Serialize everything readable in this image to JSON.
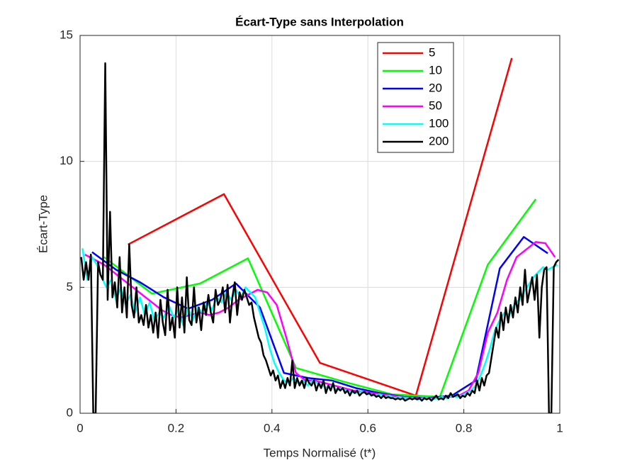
{
  "chart_data": {
    "type": "line",
    "title": "Écart-Type sans Interpolation",
    "xlabel": "Temps Normalisé (t*)",
    "ylabel": "Écart-Type",
    "xlim": [
      0,
      1
    ],
    "ylim": [
      0,
      15
    ],
    "xticks": [
      0,
      0.2,
      0.4,
      0.6,
      0.8,
      1
    ],
    "yticks": [
      0,
      5,
      10,
      15
    ],
    "grid": true,
    "legend": "upper right",
    "series": [
      {
        "name": "5",
        "color": "#ff0000",
        "x": [
          0.1,
          0.3,
          0.5,
          0.7,
          0.9
        ],
        "values": [
          6.7,
          8.7,
          2.0,
          0.7,
          14.1
        ]
      },
      {
        "name": "10",
        "color": "#00ff00",
        "x": [
          0.05,
          0.15,
          0.25,
          0.35,
          0.45,
          0.55,
          0.65,
          0.75,
          0.85,
          0.95
        ],
        "values": [
          6.2,
          4.75,
          5.15,
          6.15,
          1.8,
          1.25,
          0.75,
          0.65,
          5.9,
          8.5
        ]
      },
      {
        "name": "20",
        "color": "#0000ff",
        "x": [
          0.025,
          0.075,
          0.125,
          0.175,
          0.225,
          0.275,
          0.325,
          0.375,
          0.425,
          0.475,
          0.525,
          0.575,
          0.625,
          0.675,
          0.725,
          0.775,
          0.825,
          0.875,
          0.925,
          0.975
        ],
        "values": [
          6.4,
          5.7,
          5.2,
          4.6,
          4.15,
          4.5,
          5.15,
          4.2,
          1.6,
          1.4,
          1.3,
          1.0,
          0.8,
          0.65,
          0.6,
          0.7,
          1.3,
          5.75,
          7.0,
          6.35
        ]
      },
      {
        "name": "50",
        "color": "#ff00ff",
        "x": [
          0.01,
          0.03,
          0.05,
          0.07,
          0.09,
          0.11,
          0.13,
          0.15,
          0.17,
          0.19,
          0.21,
          0.23,
          0.25,
          0.27,
          0.29,
          0.31,
          0.33,
          0.35,
          0.37,
          0.39,
          0.41,
          0.43,
          0.45,
          0.47,
          0.49,
          0.51,
          0.53,
          0.55,
          0.57,
          0.59,
          0.61,
          0.63,
          0.65,
          0.67,
          0.69,
          0.71,
          0.73,
          0.75,
          0.77,
          0.79,
          0.81,
          0.83,
          0.85,
          0.87,
          0.89,
          0.91,
          0.93,
          0.95,
          0.97,
          0.99
        ],
        "values": [
          6.3,
          6.1,
          5.9,
          5.6,
          5.3,
          5.0,
          4.7,
          4.4,
          4.1,
          3.9,
          3.8,
          3.9,
          4.0,
          3.9,
          4.0,
          4.2,
          4.5,
          4.7,
          4.9,
          4.8,
          4.3,
          3.0,
          1.6,
          1.3,
          1.3,
          1.2,
          1.1,
          1.0,
          0.9,
          0.85,
          0.8,
          0.75,
          0.7,
          0.65,
          0.6,
          0.6,
          0.6,
          0.6,
          0.65,
          0.7,
          0.9,
          1.6,
          3.2,
          4.0,
          5.3,
          6.2,
          6.5,
          6.8,
          6.75,
          6.2
        ]
      },
      {
        "name": "100",
        "color": "#00ffff",
        "x": [
          0.005,
          0.015,
          0.025,
          0.035,
          0.045,
          0.055,
          0.065,
          0.075,
          0.085,
          0.095,
          0.105,
          0.115,
          0.125,
          0.135,
          0.145,
          0.155,
          0.165,
          0.175,
          0.185,
          0.195,
          0.205,
          0.215,
          0.225,
          0.235,
          0.245,
          0.255,
          0.265,
          0.275,
          0.285,
          0.295,
          0.305,
          0.315,
          0.325,
          0.335,
          0.345,
          0.355,
          0.365,
          0.375,
          0.385,
          0.395,
          0.405,
          0.415,
          0.425,
          0.435,
          0.445,
          0.455,
          0.465,
          0.475,
          0.485,
          0.495,
          0.505,
          0.515,
          0.525,
          0.535,
          0.545,
          0.555,
          0.565,
          0.575,
          0.585,
          0.595,
          0.605,
          0.615,
          0.625,
          0.635,
          0.645,
          0.655,
          0.665,
          0.675,
          0.685,
          0.695,
          0.705,
          0.715,
          0.725,
          0.735,
          0.745,
          0.755,
          0.765,
          0.775,
          0.785,
          0.795,
          0.805,
          0.815,
          0.825,
          0.835,
          0.845,
          0.855,
          0.865,
          0.875,
          0.885,
          0.895,
          0.905,
          0.915,
          0.925,
          0.935,
          0.945,
          0.955,
          0.965,
          0.975,
          0.985,
          0.995
        ],
        "values": [
          6.55,
          5.3,
          6.2,
          5.9,
          5.4,
          5.0,
          5.3,
          4.5,
          5.0,
          4.3,
          4.7,
          4.0,
          4.6,
          3.9,
          4.4,
          3.7,
          4.0,
          3.8,
          4.3,
          3.8,
          4.1,
          3.5,
          4.2,
          3.7,
          4.2,
          4.0,
          4.4,
          4.1,
          4.6,
          4.4,
          4.8,
          4.5,
          4.9,
          4.6,
          5.0,
          4.8,
          4.6,
          4.0,
          3.4,
          2.6,
          2.0,
          1.6,
          1.3,
          1.2,
          1.4,
          1.2,
          1.3,
          1.1,
          1.3,
          1.2,
          1.1,
          1.0,
          1.1,
          0.9,
          1.0,
          0.9,
          0.85,
          0.8,
          0.85,
          0.8,
          0.75,
          0.7,
          0.75,
          0.65,
          0.7,
          0.6,
          0.65,
          0.6,
          0.6,
          0.6,
          0.55,
          0.6,
          0.6,
          0.55,
          0.6,
          0.65,
          0.6,
          0.7,
          0.65,
          0.7,
          0.8,
          0.9,
          1.1,
          1.5,
          2.0,
          2.6,
          3.3,
          3.7,
          4.0,
          3.9,
          4.3,
          4.5,
          4.8,
          5.1,
          5.4,
          5.6,
          5.8,
          5.7,
          5.8,
          5.9
        ]
      },
      {
        "name": "200",
        "color": "#000000",
        "x": [
          0.0025,
          0.0075,
          0.0125,
          0.0175,
          0.0225,
          0.0275,
          0.0325,
          0.0375,
          0.0425,
          0.0475,
          0.0525,
          0.0575,
          0.0625,
          0.0675,
          0.0725,
          0.0775,
          0.0825,
          0.0875,
          0.0925,
          0.0975,
          0.1025,
          0.1075,
          0.1125,
          0.1175,
          0.1225,
          0.1275,
          0.1325,
          0.1375,
          0.1425,
          0.1475,
          0.1525,
          0.1575,
          0.1625,
          0.1675,
          0.1725,
          0.1775,
          0.1825,
          0.1875,
          0.1925,
          0.1975,
          0.2025,
          0.2075,
          0.2125,
          0.2175,
          0.2225,
          0.2275,
          0.2325,
          0.2375,
          0.2425,
          0.2475,
          0.2525,
          0.2575,
          0.2625,
          0.2675,
          0.2725,
          0.2775,
          0.2825,
          0.2875,
          0.2925,
          0.2975,
          0.3025,
          0.3075,
          0.3125,
          0.3175,
          0.3225,
          0.3275,
          0.3325,
          0.3375,
          0.3425,
          0.3475,
          0.3525,
          0.3575,
          0.3625,
          0.3675,
          0.3725,
          0.3775,
          0.3825,
          0.3875,
          0.3925,
          0.3975,
          0.4025,
          0.4075,
          0.4125,
          0.4175,
          0.4225,
          0.4275,
          0.4325,
          0.4375,
          0.4425,
          0.4475,
          0.4525,
          0.4575,
          0.4625,
          0.4675,
          0.4725,
          0.4775,
          0.4825,
          0.4875,
          0.4925,
          0.4975,
          0.5025,
          0.5075,
          0.5125,
          0.5175,
          0.5225,
          0.5275,
          0.5325,
          0.5375,
          0.5425,
          0.5475,
          0.5525,
          0.5575,
          0.5625,
          0.5675,
          0.5725,
          0.5775,
          0.5825,
          0.5875,
          0.5925,
          0.5975,
          0.6025,
          0.6075,
          0.6125,
          0.6175,
          0.6225,
          0.6275,
          0.6325,
          0.6375,
          0.6425,
          0.6475,
          0.6525,
          0.6575,
          0.6625,
          0.6675,
          0.6725,
          0.6775,
          0.6825,
          0.6875,
          0.6925,
          0.6975,
          0.7025,
          0.7075,
          0.7125,
          0.7175,
          0.7225,
          0.7275,
          0.7325,
          0.7375,
          0.7425,
          0.7475,
          0.7525,
          0.7575,
          0.7625,
          0.7675,
          0.7725,
          0.7775,
          0.7825,
          0.7875,
          0.7925,
          0.7975,
          0.8025,
          0.8075,
          0.8125,
          0.8175,
          0.8225,
          0.8275,
          0.8325,
          0.8375,
          0.8425,
          0.8475,
          0.8525,
          0.8575,
          0.8625,
          0.8675,
          0.8725,
          0.8775,
          0.8825,
          0.8875,
          0.8925,
          0.8975,
          0.9025,
          0.9075,
          0.9125,
          0.9175,
          0.9225,
          0.9275,
          0.9325,
          0.9375,
          0.9425,
          0.9475,
          0.9525,
          0.9575,
          0.9625,
          0.9675,
          0.9725,
          0.9775,
          0.9825,
          0.9875,
          0.9925,
          0.9975
        ],
        "values": [
          6.2,
          5.3,
          6.0,
          5.3,
          6.3,
          0,
          0,
          6.0,
          5.5,
          5.3,
          13.9,
          4.5,
          8.0,
          4.6,
          5.2,
          4.2,
          6.2,
          4.0,
          5.0,
          3.8,
          6.7,
          4.3,
          3.8,
          5.0,
          3.6,
          3.9,
          3.5,
          4.3,
          3.4,
          3.9,
          3.2,
          4.0,
          3.0,
          4.5,
          3.6,
          3.1,
          4.9,
          3.3,
          3.8,
          3.0,
          5.0,
          3.4,
          4.6,
          3.2,
          5.4,
          3.7,
          3.5,
          5.0,
          3.6,
          4.2,
          3.3,
          4.4,
          3.9,
          4.7,
          4.0,
          3.6,
          4.9,
          4.3,
          4.5,
          5.0,
          4.0,
          5.1,
          3.6,
          4.6,
          5.2,
          3.9,
          4.8,
          4.5,
          4.9,
          4.6,
          4.3,
          4.4,
          3.8,
          3.4,
          3.0,
          2.8,
          2.3,
          2.1,
          1.8,
          1.5,
          1.7,
          1.3,
          1.5,
          1.0,
          1.3,
          1.0,
          1.4,
          1.1,
          2.1,
          1.0,
          1.4,
          1.1,
          1.3,
          1.0,
          1.4,
          1.2,
          1.1,
          1.3,
          0.9,
          1.2,
          1.0,
          1.3,
          0.8,
          1.1,
          0.9,
          1.2,
          0.8,
          1.0,
          0.9,
          1.0,
          0.8,
          0.9,
          0.7,
          0.9,
          0.8,
          0.9,
          0.7,
          0.8,
          0.85,
          0.75,
          0.8,
          0.7,
          0.75,
          0.65,
          0.7,
          0.6,
          0.7,
          0.6,
          0.65,
          0.6,
          0.6,
          0.55,
          0.6,
          0.55,
          0.6,
          0.5,
          0.55,
          0.6,
          0.55,
          0.6,
          0.55,
          0.6,
          0.5,
          0.6,
          0.55,
          0.6,
          0.5,
          0.6,
          0.7,
          0.55,
          0.6,
          0.55,
          0.7,
          0.6,
          0.8,
          0.65,
          0.7,
          0.75,
          0.6,
          0.7,
          0.65,
          0.8,
          0.7,
          0.9,
          0.8,
          1.3,
          0.9,
          1.4,
          1.1,
          1.5,
          1.6,
          2.2,
          2.8,
          3.4,
          3.0,
          4.0,
          3.3,
          4.2,
          3.6,
          4.3,
          3.8,
          4.6,
          4.0,
          5.0,
          4.3,
          5.7,
          4.4,
          4.9,
          5.4,
          4.5,
          5.5,
          3.0,
          5.0,
          5.7,
          5.8,
          0,
          0,
          5.8,
          6.0,
          6.1
        ]
      }
    ]
  }
}
